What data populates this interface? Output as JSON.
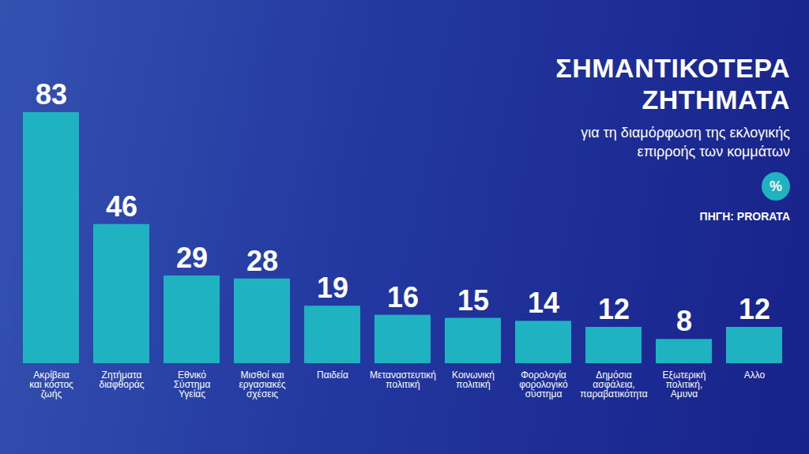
{
  "chart_data": {
    "type": "bar",
    "title": "ΣΗΜΑΝΤΙΚΟΤΕΡΑ ΖΗΤΗΜΑΤΑ",
    "subtitle": "για τη διαμόρφωση της εκλογικής επιρροής των κομμάτων",
    "annotations": [
      "%",
      "ΠΗΓΗ: PRORATA"
    ],
    "categories": [
      "Ακρίβεια και κόστος ζωής",
      "Ζητήματα διαφθοράς",
      "Εθνικό Σύστημα Υγείας",
      "Μισθοί και εργασιακές σχέσεις",
      "Παιδεία",
      "Μεταναστευτική πολιτική",
      "Κοινωνική πολιτική",
      "Φορολογία φορολογικό σύστημα",
      "Δημόσια ασφάλεια, παραβατικότητα",
      "Εξωτερική πολιτική, Αμυνα",
      "Αλλο"
    ],
    "values": [
      83,
      46,
      29,
      28,
      19,
      16,
      15,
      14,
      12,
      8,
      12
    ],
    "color": "#1fb3c1",
    "ylim": [
      0,
      83
    ],
    "grid": false,
    "data_labels": true,
    "tick_labels": "x"
  }
}
